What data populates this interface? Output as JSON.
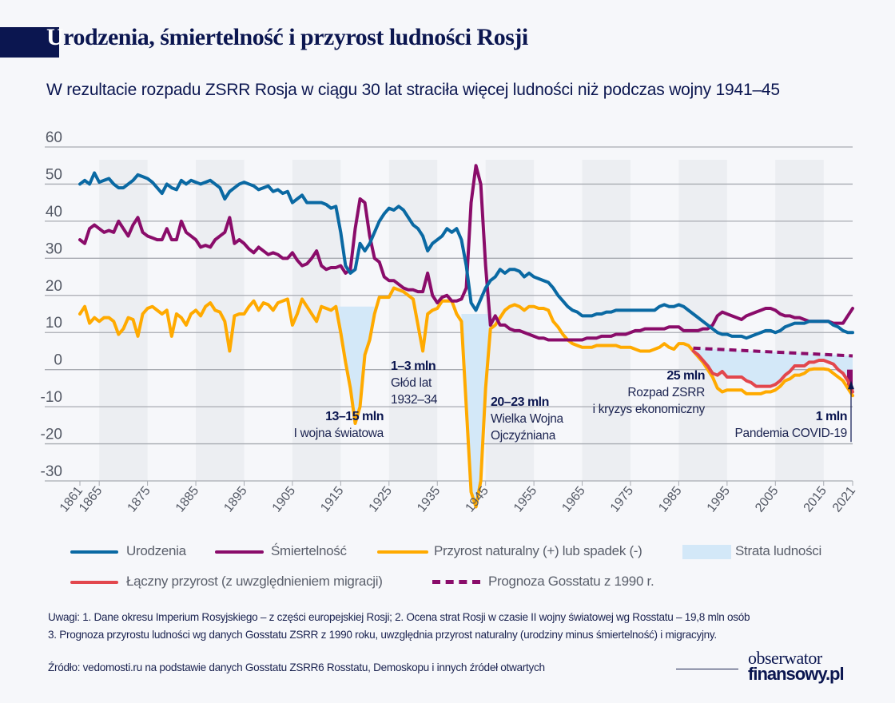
{
  "header": {
    "title_first_letter": "U",
    "title_rest": "rodzenia, śmiertelność i przyrost ludności Rosji",
    "subtitle": "W rezultacie rozpadu ZSRR Rosja w ciągu 30 lat straciła więcej ludności niż podczas wojny 1941–45"
  },
  "chart_data": {
    "type": "line",
    "title": "Urodzenia, śmiertelność i przyrost ludności Rosji",
    "xlim": [
      1861,
      2021
    ],
    "ylim": [
      -30,
      60
    ],
    "yticks": [
      "60",
      "50",
      "40",
      "30",
      "20",
      "10",
      "0",
      "-10",
      "-20",
      "-30"
    ],
    "xticks": [
      "1861",
      "1865",
      "1875",
      "1885",
      "1895",
      "1905",
      "1915",
      "1925",
      "1935",
      "1945",
      "1955",
      "1965",
      "1975",
      "1985",
      "1995",
      "2005",
      "2015",
      "2021"
    ],
    "grid": "horizontal",
    "shaded_decades": [
      [
        1865,
        1875
      ],
      [
        1885,
        1895
      ],
      [
        1905,
        1915
      ],
      [
        1925,
        1935
      ],
      [
        1945,
        1955
      ],
      [
        1965,
        1975
      ],
      [
        1985,
        1995
      ],
      [
        2005,
        2015
      ]
    ],
    "colors": {
      "births": "#0a69a3",
      "deaths": "#8a0c6a",
      "natural": "#ffaa00",
      "total": "#e2474d",
      "forecast": "#8a0c6a",
      "loss": "#d3e8f8",
      "bands": "#eceef2",
      "grid": "#a8abb2"
    },
    "series": [
      {
        "key": "births",
        "name": "Urodzenia",
        "start_year": 1861,
        "values": [
          50,
          51,
          50,
          53,
          50.5,
          51,
          51.5,
          50,
          49,
          49,
          50,
          51,
          52.5,
          52,
          51.5,
          50.5,
          49,
          47.5,
          50,
          49,
          48.5,
          51,
          50,
          51,
          50.5,
          50,
          50.5,
          51,
          50,
          49,
          46,
          48,
          49,
          50,
          50.5,
          50,
          49.5,
          48.5,
          49,
          49.5,
          48,
          48.5,
          47.5,
          48,
          45,
          46,
          47,
          45,
          45,
          45,
          45,
          44.5,
          43.5,
          44,
          37,
          28,
          26,
          27,
          34,
          32,
          34,
          37,
          40,
          42,
          43.5,
          43,
          44,
          43,
          41,
          39,
          38,
          36,
          32,
          34,
          35,
          36,
          38,
          37,
          38,
          35,
          28,
          18,
          16,
          19,
          22,
          24,
          25,
          27,
          26,
          27,
          27,
          26.5,
          25,
          26,
          25,
          24.5,
          24,
          23.5,
          22,
          20,
          18.5,
          17,
          16,
          15.5,
          14.5,
          14.5,
          14.5,
          15,
          15,
          15.5,
          15.5,
          16,
          16,
          16,
          16,
          16,
          16,
          16,
          16,
          16,
          17,
          17.5,
          17,
          17,
          17.5,
          17,
          16,
          15,
          14,
          13,
          12,
          11,
          10,
          9.5,
          9.5,
          9,
          9,
          9,
          8.5,
          9,
          9.5,
          10,
          10.5,
          10.5,
          10,
          10.5,
          11.5,
          12,
          12.5,
          12.5,
          12.5,
          13,
          13,
          13,
          13,
          13,
          12,
          11.5,
          10.5,
          10,
          10
        ]
      },
      {
        "key": "deaths",
        "name": "Śmiertelność",
        "start_year": 1861,
        "values": [
          35,
          34,
          38,
          39,
          38,
          37,
          37.5,
          37,
          40,
          38,
          36,
          39,
          41,
          37,
          36,
          35.5,
          35,
          35,
          38,
          35,
          35,
          40,
          37,
          36,
          35,
          33,
          33.5,
          33,
          35,
          36,
          37,
          41,
          34,
          35,
          34,
          32.5,
          31.5,
          33,
          32,
          31,
          31.5,
          31,
          30,
          30,
          31.5,
          29.5,
          28,
          28.5,
          30,
          32,
          28,
          27,
          27.5,
          27.5,
          28,
          26,
          27,
          38,
          46,
          45,
          36,
          30,
          29,
          25,
          24,
          24,
          23,
          22,
          21.5,
          21.5,
          21,
          21,
          26,
          20,
          18,
          19.5,
          20,
          18.5,
          18.5,
          19,
          22,
          45,
          55,
          50,
          28,
          12,
          14.5,
          12,
          12,
          11,
          10.5,
          10.5,
          10,
          9.5,
          9,
          8.5,
          8.5,
          8,
          8,
          8,
          8,
          8,
          8,
          8,
          8,
          8.5,
          8.5,
          8.5,
          9,
          9,
          9,
          9.5,
          9.5,
          9.5,
          10,
          10.5,
          10.5,
          11,
          11,
          11,
          11,
          11,
          11.5,
          11.5,
          11.5,
          10.5,
          10.5,
          10.5,
          10.5,
          11,
          11,
          12,
          14.5,
          15.5,
          15,
          14.5,
          14,
          13.5,
          14.5,
          15,
          15.5,
          16,
          16.5,
          16.5,
          16,
          15,
          14.5,
          14.5,
          14,
          14,
          13.5,
          13,
          13,
          13,
          13,
          13,
          12.5,
          12.5,
          12.5,
          14.5,
          16.5
        ]
      },
      {
        "key": "natural",
        "name": "Przyrost naturalny (+) lub spadek (-)",
        "start_year": 1861,
        "values": [
          15,
          17,
          12.5,
          14,
          13,
          14,
          14,
          13,
          9.5,
          11,
          14,
          13.5,
          9,
          15,
          16.5,
          17,
          16,
          15,
          16,
          9,
          15,
          14,
          12,
          15,
          16,
          14.5,
          17,
          18,
          16,
          15.5,
          13,
          5,
          14.5,
          15,
          15,
          17,
          18.5,
          16,
          18,
          17.5,
          16,
          18,
          18.5,
          19,
          12,
          15,
          19,
          17,
          15,
          13,
          17,
          16.5,
          16,
          17,
          10,
          2,
          -5,
          -14.5,
          -10,
          4,
          8,
          15,
          19.5,
          19.5,
          19.5,
          22,
          21.5,
          21,
          20,
          19,
          12,
          5,
          15,
          16,
          16.5,
          18.5,
          18.5,
          18.5,
          15,
          13,
          -10,
          -33,
          -37,
          -30,
          -5,
          11,
          12,
          14,
          16,
          17,
          17.5,
          17,
          16,
          17,
          17,
          16.5,
          16.5,
          16,
          13,
          11.5,
          9.5,
          8,
          7,
          6.5,
          6,
          6,
          6,
          6.5,
          6.5,
          6.5,
          6.5,
          6.5,
          6,
          6,
          6,
          5.5,
          5,
          5,
          5,
          5.5,
          6,
          7,
          6,
          5.5,
          7,
          7,
          6.5,
          5,
          3.5,
          2,
          0,
          -2,
          -5,
          -6,
          -5.5,
          -5.5,
          -5.5,
          -5.5,
          -6.5,
          -6.5,
          -6.5,
          -6.5,
          -6,
          -6,
          -5.5,
          -4.5,
          -3,
          -2.5,
          -1.5,
          -1.5,
          -1,
          0,
          0.2,
          0.2,
          0.2,
          0,
          -1,
          -2,
          -3,
          -5,
          -7
        ]
      },
      {
        "key": "total",
        "name": "Łączny przyrost (z uwzględnieniem migracji)",
        "start_year": 1988,
        "values": [
          5,
          4,
          2.5,
          1,
          -1,
          -1.5,
          -0.5,
          -2,
          -2,
          -2,
          -2,
          -3,
          -3.5,
          -4.5,
          -4.5,
          -4.5,
          -4.5,
          -4,
          -3,
          -1.5,
          -0.5,
          1,
          1,
          1,
          2,
          2,
          2.5,
          2.5,
          2,
          1.5,
          0,
          -1,
          -3,
          -6
        ]
      },
      {
        "key": "forecast",
        "name": "Prognoza Gosstatu z 1990 r.",
        "start_year": 1988,
        "values": [
          5.8
        ],
        "end": [
          2021,
          3.7
        ],
        "dashed": true
      }
    ],
    "loss_areas": [
      {
        "from": 1914,
        "to": 1922,
        "upper": 17,
        "lower": "natural"
      },
      {
        "from": 1940,
        "to": 1946,
        "upper": 15,
        "lower": "natural"
      },
      {
        "from": 1988,
        "to": 2021,
        "upper": "forecast",
        "lower": "total"
      }
    ],
    "covid_loss": {
      "year": 2021,
      "from": 0,
      "to": -4.5
    },
    "annotations": [
      {
        "value": "13–15 mln",
        "label": [
          "I wojna światowa"
        ]
      },
      {
        "value": "1–3 mln",
        "label": [
          "Głód lat",
          "1932–34"
        ]
      },
      {
        "value": "20–23 mln",
        "label": [
          "Wielka Wojna",
          "Ojczyźniana"
        ]
      },
      {
        "value": "25 mln",
        "label": [
          "Rozpad ZSRR",
          "i kryzys ekonomiczny"
        ]
      },
      {
        "value": "1 mln",
        "label": [
          "Pandemia COVID-19"
        ]
      }
    ]
  },
  "legend": {
    "births": "Urodzenia",
    "deaths": "Śmiertelność",
    "natural": "Przyrost naturalny (+) lub spadek (-)",
    "loss": "Strata ludności",
    "total": "Łączny przyrost (z uwzględnieniem migracji)",
    "forecast": "Prognoza Gosstatu z 1990 r."
  },
  "notes": {
    "line1": "Uwagi:  1. Dane okresu Imperium Rosyjskiego – z części europejskiej Rosji;  2. Ocena strat Rosji w czasie II wojny światowej wg Rosstatu – 19,8 mln osób",
    "line2": "3. Prognoza przyrostu ludności wg danych Gosstatu ZSRR z 1990 roku, uwzględnia przyrost naturalny (urodziny minus śmiertelność) i migracyjny.",
    "source": "Źródło: vedomosti.ru na podstawie danych Gosstatu ZSRR6 Rosstatu, Demoskopu i innych źródeł otwartych"
  },
  "logo": {
    "line1": "obserwator",
    "line2": "finansowy.pl"
  }
}
